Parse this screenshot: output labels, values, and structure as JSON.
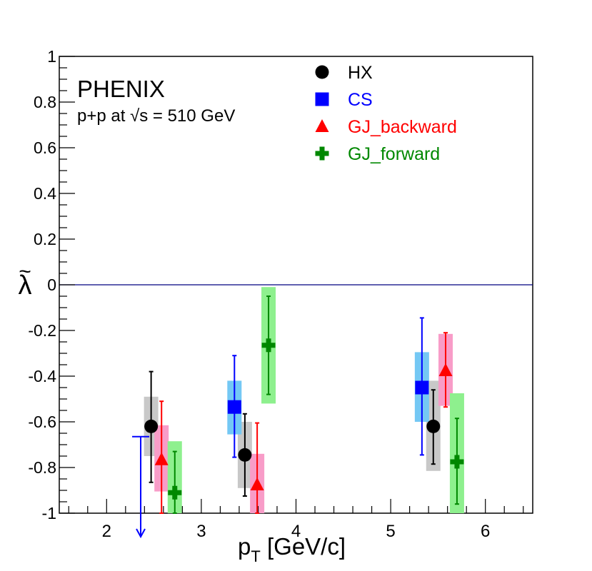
{
  "chart_data": {
    "type": "scatter",
    "title": "",
    "experiment": "PHENIX",
    "subtitle_prefix": "p+p at ",
    "subtitle_sqrt": "√",
    "subtitle_suffix": "s = 510 GeV",
    "xlabel_main": "p",
    "xlabel_sub": "T",
    "xlabel_unit": " [GeV/c]",
    "ylabel": "λ",
    "ylabel_accent": "~",
    "xlim": [
      1.5,
      6.5
    ],
    "ylim": [
      -1,
      1
    ],
    "xticks": [
      2,
      3,
      4,
      5,
      6
    ],
    "xtick_labels": [
      "2",
      "3",
      "4",
      "5",
      "6"
    ],
    "yticks": [
      -1,
      -0.8,
      -0.6,
      -0.4,
      -0.2,
      0,
      0.2,
      0.4,
      0.6,
      0.8,
      1
    ],
    "ytick_labels": [
      "-1",
      "-0.8",
      "-0.6",
      "-0.4",
      "-0.2",
      "0",
      "0.2",
      "0.4",
      "0.6",
      "0.8",
      "1"
    ],
    "reference_line": 0,
    "upper_limit": {
      "x": 2.36,
      "y": -0.665,
      "color": "#0000ff"
    },
    "series": [
      {
        "name": "HX",
        "marker": "circle",
        "color": "#000000",
        "box_color": "#c8c8c8",
        "points": [
          {
            "x": 2.47,
            "y": -0.62,
            "stat_lo": -0.865,
            "stat_hi": -0.38,
            "sys_lo": -0.75,
            "sys_hi": -0.49
          },
          {
            "x": 3.46,
            "y": -0.745,
            "stat_lo": -0.925,
            "stat_hi": -0.565,
            "sys_lo": -0.89,
            "sys_hi": -0.6
          },
          {
            "x": 5.45,
            "y": -0.62,
            "stat_lo": -0.785,
            "stat_hi": -0.46,
            "sys_lo": -0.815,
            "sys_hi": -0.42
          }
        ]
      },
      {
        "name": "CS",
        "marker": "square",
        "color": "#0000ff",
        "box_color": "#74c8f4",
        "points": [
          {
            "x": 3.35,
            "y": -0.535,
            "stat_lo": -0.755,
            "stat_hi": -0.31,
            "sys_lo": -0.655,
            "sys_hi": -0.42
          },
          {
            "x": 5.33,
            "y": -0.45,
            "stat_lo": -0.745,
            "stat_hi": -0.145,
            "sys_lo": -0.6,
            "sys_hi": -0.295
          }
        ]
      },
      {
        "name": "GJ_backward",
        "marker": "triangle",
        "color": "#ff0000",
        "box_color": "#f89cc8",
        "points": [
          {
            "x": 2.58,
            "y": -0.765,
            "stat_lo": -1.0,
            "stat_hi": -0.51,
            "sys_lo": -0.905,
            "sys_hi": -0.615
          },
          {
            "x": 3.59,
            "y": -0.875,
            "stat_lo": -1.0,
            "stat_hi": -0.605,
            "sys_lo": -1.0,
            "sys_hi": -0.74
          },
          {
            "x": 5.58,
            "y": -0.375,
            "stat_lo": -0.535,
            "stat_hi": -0.21,
            "sys_lo": -0.53,
            "sys_hi": -0.215
          }
        ]
      },
      {
        "name": "GJ_forward",
        "marker": "cross",
        "color": "#008800",
        "box_color": "#8ef08e",
        "points": [
          {
            "x": 2.72,
            "y": -0.91,
            "stat_lo": -1.0,
            "stat_hi": -0.73,
            "sys_lo": -1.0,
            "sys_hi": -0.685
          },
          {
            "x": 3.71,
            "y": -0.265,
            "stat_lo": -0.48,
            "stat_hi": -0.05,
            "sys_lo": -0.52,
            "sys_hi": -0.01
          },
          {
            "x": 5.7,
            "y": -0.775,
            "stat_lo": -0.96,
            "stat_hi": -0.585,
            "sys_lo": -1.0,
            "sys_hi": -0.475
          }
        ]
      }
    ],
    "legend": [
      {
        "label": "HX",
        "color": "#000000",
        "marker": "circle"
      },
      {
        "label": "CS",
        "color": "#0000ff",
        "marker": "square"
      },
      {
        "label": "GJ_backward",
        "color": "#ff0000",
        "marker": "triangle"
      },
      {
        "label": "GJ_forward",
        "color": "#008800",
        "marker": "cross"
      }
    ]
  }
}
